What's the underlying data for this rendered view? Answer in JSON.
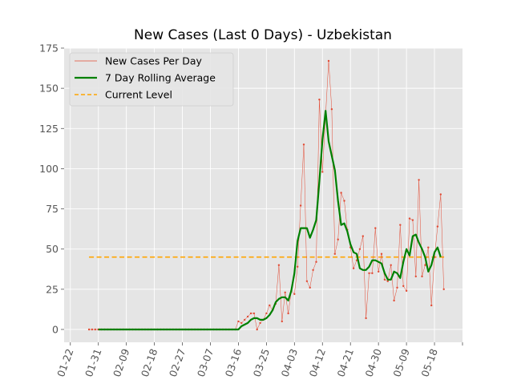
{
  "chart_data": {
    "type": "line",
    "title": "New Cases (Last 0 Days) - Uzbekistan",
    "xlabel": "",
    "ylabel": "",
    "x_start": "2020-01-22",
    "ylim": [
      -8,
      175
    ],
    "yticks": [
      0,
      25,
      50,
      75,
      100,
      125,
      150,
      175
    ],
    "xticks": [
      "01-22",
      "01-31",
      "02-09",
      "02-18",
      "02-27",
      "03-07",
      "03-16",
      "03-25",
      "04-03",
      "04-12",
      "04-21",
      "04-30",
      "05-09",
      "05-18"
    ],
    "grid": true,
    "legend_position": "top-left",
    "current_level": 45,
    "colors": {
      "daily": "#e24a33",
      "rolling": "#008000",
      "current": "#ffa500",
      "plot_bg": "#e5e5e5",
      "grid": "#ffffff"
    },
    "series": [
      {
        "name": "New Cases Per Day",
        "x_start": "01-28",
        "values": [
          0,
          0,
          0,
          0,
          0,
          0,
          0,
          0,
          0,
          0,
          0,
          0,
          0,
          0,
          0,
          0,
          0,
          0,
          0,
          0,
          0,
          0,
          0,
          0,
          0,
          0,
          0,
          0,
          0,
          0,
          0,
          0,
          0,
          0,
          0,
          0,
          0,
          0,
          0,
          0,
          0,
          0,
          0,
          0,
          0,
          0,
          0,
          0,
          5,
          4,
          6,
          8,
          10,
          10,
          0,
          4,
          6,
          10,
          15,
          12,
          16,
          40,
          5,
          23,
          10,
          24,
          22,
          39,
          77,
          115,
          30,
          26,
          37,
          42,
          143,
          98,
          133,
          167,
          137,
          47,
          56,
          85,
          80,
          62,
          51,
          38,
          43,
          50,
          58,
          7,
          35,
          35,
          63,
          36,
          47,
          31,
          30,
          40,
          18,
          26,
          65,
          27,
          24,
          69,
          68,
          33,
          93,
          33,
          40,
          51,
          15,
          45,
          64,
          84,
          25
        ]
      },
      {
        "name": "7 Day Rolling Average",
        "x_start": "01-31",
        "values": [
          0,
          0,
          0,
          0,
          0,
          0,
          0,
          0,
          0,
          0,
          0,
          0,
          0,
          0,
          0,
          0,
          0,
          0,
          0,
          0,
          0,
          0,
          0,
          0,
          0,
          0,
          0,
          0,
          0,
          0,
          0,
          0,
          0,
          0,
          0,
          0,
          0,
          0,
          0,
          0,
          0,
          0,
          0,
          0,
          0,
          0,
          2,
          3,
          4,
          6,
          7,
          7,
          6,
          6,
          7,
          9,
          12,
          17,
          19,
          20,
          20,
          18,
          24,
          35,
          55,
          63,
          63,
          63,
          57,
          62,
          68,
          92,
          118,
          136,
          117,
          108,
          99,
          80,
          65,
          66,
          61,
          53,
          48,
          47,
          38,
          37,
          37,
          39,
          43,
          43,
          42,
          41,
          35,
          31,
          31,
          36,
          35,
          32,
          42,
          50,
          46,
          58,
          59,
          54,
          50,
          45,
          36,
          40,
          48,
          51,
          45
        ]
      },
      {
        "name": "Current Level",
        "x_start": "01-28",
        "x_end": "05-22",
        "values": [
          45,
          45
        ]
      }
    ]
  }
}
